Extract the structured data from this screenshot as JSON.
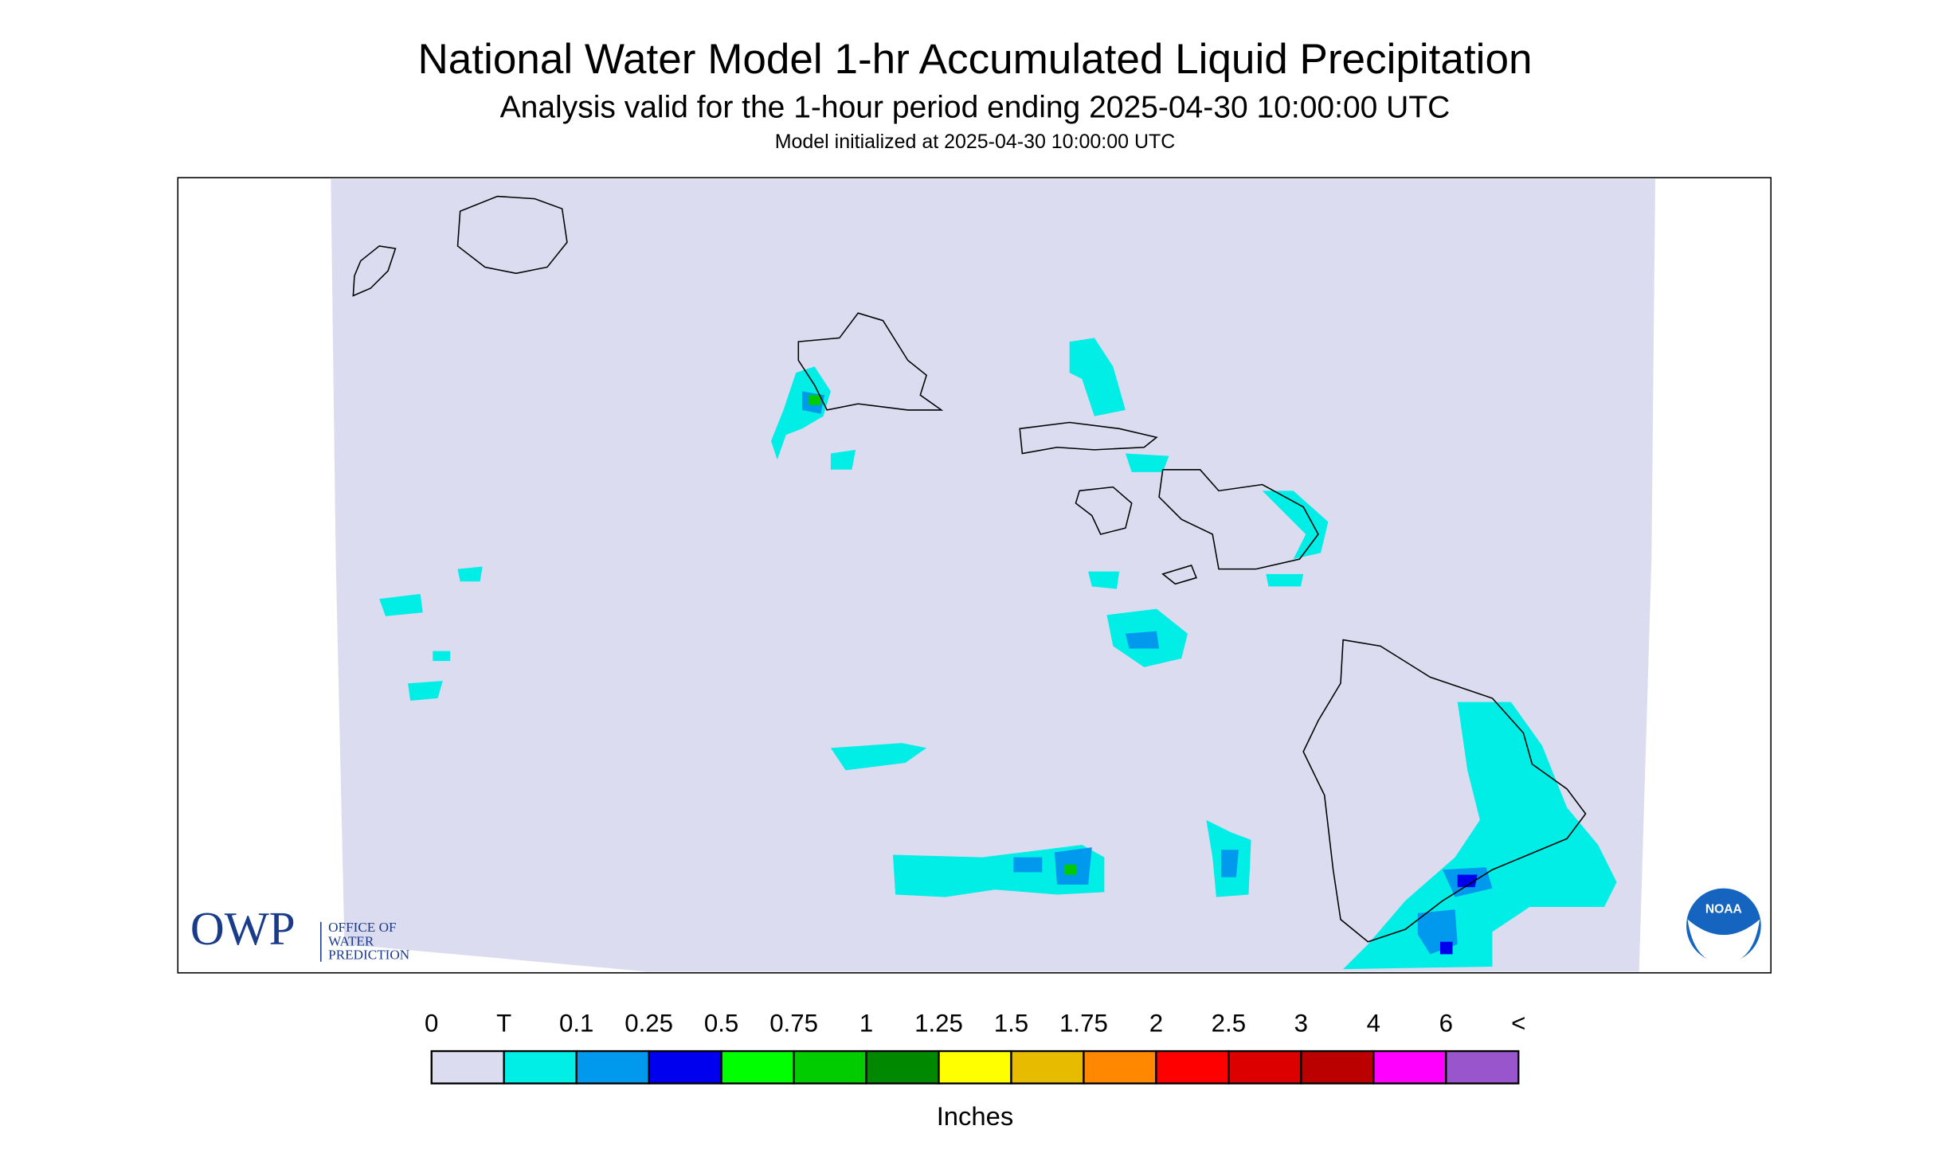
{
  "header": {
    "title": "National Water Model 1-hr Accumulated Liquid Precipitation",
    "subtitle": "Analysis valid for the 1-hour period ending 2025-04-30 10:00:00 UTC",
    "note": "Model initialized at 2025-04-30 10:00:00 UTC"
  },
  "logos": {
    "owp": "OWP",
    "owp_lines": [
      "OFFICE OF",
      "WATER",
      "PREDICTION"
    ],
    "noaa": "NOAA"
  },
  "legend": {
    "labels": [
      "0",
      "T",
      "0.1",
      "0.25",
      "0.5",
      "0.75",
      "1",
      "1.25",
      "1.5",
      "1.75",
      "2",
      "2.5",
      "3",
      "4",
      "6",
      "<"
    ],
    "colors": [
      "#dcdcf0",
      "#00eee6",
      "#0099ee",
      "#0000ee",
      "#00ff00",
      "#00cc00",
      "#008800",
      "#ffff00",
      "#e6bb00",
      "#ff8800",
      "#ff0000",
      "#dd0000",
      "#bb0000",
      "#ff00ff",
      "#9955cc"
    ],
    "unit": "Inches"
  }
}
